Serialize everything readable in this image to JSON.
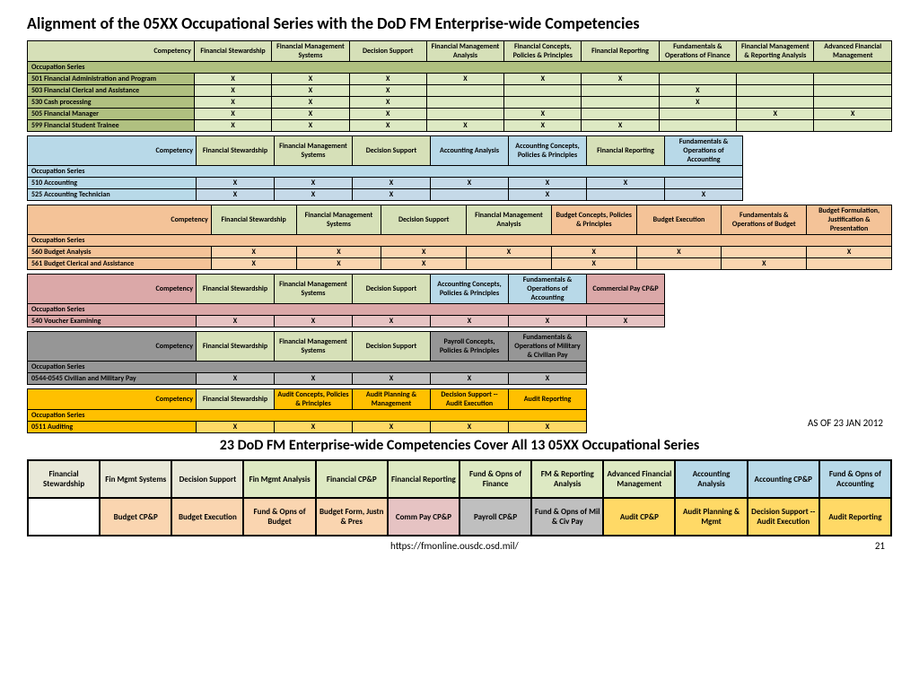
{
  "title": "Alignment of the 05XX Occupational Series with the DoD FM Enterprise-wide Competencies",
  "subtitle": "23 DoD FM Enterprise-wide Competencies Cover All 13 05XX Occupational Series",
  "asOf": "AS OF 23 JAN 2012",
  "footerUrl": "https://fmonline.ousdc.osd.mil/",
  "pageNum": "21",
  "colors": {
    "green": "#d6e0b8",
    "blue": "#b8d9e8",
    "orange": "#f4c398",
    "pink": "#dba8a8",
    "gray": "#969696",
    "yellow": "#ffc000",
    "dgreen": "#b0c080",
    "lgreen": "#dde9c3",
    "lblue": "#c5d9e8",
    "lorange": "#fad5b0",
    "lpink": "#e6c3c3",
    "lgray": "#bfbfbf",
    "lyellow": "#ffd966",
    "white": "#fff"
  },
  "t1": {
    "headers": [
      "Competency",
      "Financial Stewardship",
      "Financial Management Systems",
      "Decision Support",
      "Financial Management Analysis",
      "Financial Concepts, Policies & Principles",
      "Financial Reporting",
      "Fundamentals & Operations of Finance",
      "Financial Management & Reporting Analysis",
      "Advanced Financial Management"
    ],
    "occLabel": "Occupation Series",
    "rows": [
      {
        "lbl": "501 Financial Administration and Program",
        "c": [
          "X",
          "X",
          "X",
          "X",
          "X",
          "X",
          "",
          "",
          ""
        ]
      },
      {
        "lbl": "503 Financial Clerical and Assistance",
        "c": [
          "X",
          "X",
          "X",
          "",
          "",
          "",
          "X",
          "",
          ""
        ]
      },
      {
        "lbl": "530 Cash processing",
        "c": [
          "X",
          "X",
          "X",
          "",
          "",
          "",
          "X",
          "",
          ""
        ]
      },
      {
        "lbl": "505 Financial Manager",
        "c": [
          "X",
          "X",
          "X",
          "",
          "X",
          "",
          "",
          "X",
          "X"
        ]
      },
      {
        "lbl": "599 Financial Student Trainee",
        "c": [
          "X",
          "X",
          "X",
          "X",
          "X",
          "X",
          "",
          "",
          ""
        ]
      }
    ]
  },
  "t2": {
    "headers": [
      "Competency",
      "Financial Stewardship",
      "Financial Management Systems",
      "Decision Support",
      "Accounting Analysis",
      "Accounting Concepts, Policies & Principles",
      "Financial Reporting",
      "Fundamentals & Operations of Accounting"
    ],
    "occLabel": "Occupation Series",
    "rows": [
      {
        "lbl": "510 Accounting",
        "c": [
          "X",
          "X",
          "X",
          "X",
          "X",
          "X",
          ""
        ]
      },
      {
        "lbl": "525 Accounting Technician",
        "c": [
          "X",
          "X",
          "X",
          "",
          "X",
          "",
          "X"
        ]
      }
    ]
  },
  "t3": {
    "headers": [
      "Competency",
      "Financial Stewardship",
      "Financial Management Systems",
      "Decision Support",
      "Financial Management Analysis",
      "Budget Concepts, Policies & Principles",
      "Budget Execution",
      "Fundamentals & Operations of Budget",
      "Budget Formulation, Justification & Presentation"
    ],
    "occLabel": "Occupation Series",
    "rows": [
      {
        "lbl": "560 Budget Analysis",
        "c": [
          "X",
          "X",
          "X",
          "X",
          "X",
          "X",
          "",
          "X"
        ]
      },
      {
        "lbl": "561 Budget Clerical and Assistance",
        "c": [
          "X",
          "X",
          "X",
          "",
          "X",
          "",
          "X",
          ""
        ]
      }
    ]
  },
  "t4": {
    "headers": [
      "Competency",
      "Financial Stewardship",
      "Financial Management Systems",
      "Decision Support",
      "Accounting Concepts, Policies & Principles",
      "Fundamentals & Operations of Accounting",
      "Commercial Pay CP&P"
    ],
    "occLabel": "Occupation Series",
    "rows": [
      {
        "lbl": "540 Voucher Examining",
        "c": [
          "X",
          "X",
          "X",
          "X",
          "X",
          "X"
        ]
      }
    ]
  },
  "t5": {
    "headers": [
      "Competency",
      "Financial Stewardship",
      "Financial Management Systems",
      "Decision Support",
      "Payroll Concepts, Policies & Principles",
      "Fundamentals & Operations of Military & Civilian Pay"
    ],
    "occLabel": "Occupation Series",
    "rows": [
      {
        "lbl": "0544-0545 Civilian and Military Pay",
        "c": [
          "X",
          "X",
          "X",
          "X",
          "X"
        ]
      }
    ]
  },
  "t6": {
    "headers": [
      "Competency",
      "Financial Stewardship",
      "Audit Concepts, Policies & Principles",
      "Audit Planning & Management",
      "Decision Support --Audit Execution",
      "Audit Reporting"
    ],
    "occLabel": "Occupation Series",
    "rows": [
      {
        "lbl": "0511 Auditing",
        "c": [
          "X",
          "X",
          "X",
          "X",
          "X"
        ]
      }
    ]
  },
  "compGrid": {
    "row1": [
      {
        "t": "Financial Stewardship",
        "bg": "#e8e8d8"
      },
      {
        "t": "Fin Mgmt Systems",
        "bg": "#e8e8d8"
      },
      {
        "t": "Decision Support",
        "bg": "#e8e8d8"
      },
      {
        "t": "Fin Mgmt Analysis",
        "bg": "#dde9c3"
      },
      {
        "t": "Financial CP&P",
        "bg": "#dde9c3"
      },
      {
        "t": "Financial Reporting",
        "bg": "#dde9c3"
      },
      {
        "t": "Fund & Opns of Finance",
        "bg": "#dde9c3"
      },
      {
        "t": "FM & Reporting Analysis",
        "bg": "#dde9c3"
      },
      {
        "t": "Advanced Financial Management",
        "bg": "#dde9c3"
      },
      {
        "t": "Accounting Analysis",
        "bg": "#b8d9e8"
      },
      {
        "t": "Accounting CP&P",
        "bg": "#b8d9e8"
      },
      {
        "t": "Fund & Opns of Accounting",
        "bg": "#b8d9e8"
      }
    ],
    "row2": [
      {
        "t": "",
        "bg": "#ffffff"
      },
      {
        "t": "Budget CP&P",
        "bg": "#fad5b0"
      },
      {
        "t": "Budget Execution",
        "bg": "#fad5b0"
      },
      {
        "t": "Fund & Opns of Budget",
        "bg": "#fad5b0"
      },
      {
        "t": "Budget Form, Justn & Pres",
        "bg": "#fad5b0"
      },
      {
        "t": "Comm Pay CP&P",
        "bg": "#e6c3c3"
      },
      {
        "t": "Payroll CP&P",
        "bg": "#bfbfbf"
      },
      {
        "t": "Fund & Opns of Mil & Civ Pay",
        "bg": "#bfbfbf"
      },
      {
        "t": "Audit CP&P",
        "bg": "#ffd966"
      },
      {
        "t": "Audit Planning & Mgmt",
        "bg": "#ffd966"
      },
      {
        "t": "Decision Support -- Audit Execution",
        "bg": "#ffd966"
      },
      {
        "t": "Audit Reporting",
        "bg": "#ffd966"
      }
    ]
  }
}
